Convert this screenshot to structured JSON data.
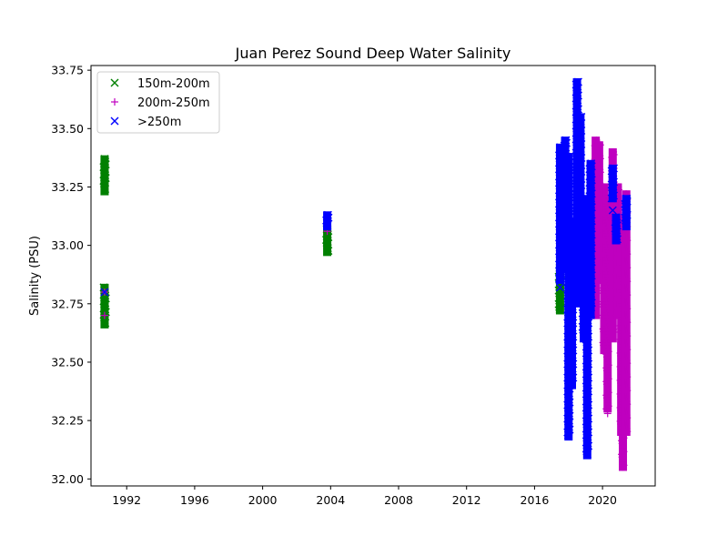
{
  "chart_data": {
    "type": "scatter",
    "title": "Juan Perez Sound Deep Water Salinity",
    "xlabel": "",
    "ylabel": "Salinity (PSU)",
    "xlim": [
      1989.9,
      2023.1
    ],
    "ylim": [
      31.97,
      33.77
    ],
    "xticks": [
      1992,
      1996,
      2000,
      2004,
      2008,
      2012,
      2016,
      2020
    ],
    "yticks": [
      "32.00",
      "32.25",
      "32.50",
      "32.75",
      "33.00",
      "33.25",
      "33.50",
      "33.75"
    ],
    "legend": {
      "placement": "top-left"
    },
    "series": [
      {
        "name": "150m-200m",
        "marker": "x",
        "color": "#008000",
        "clusters": [
          {
            "x": 1990.7,
            "ymin": 33.23,
            "ymax": 33.37
          },
          {
            "x": 1990.7,
            "ymin": 32.66,
            "ymax": 32.82
          },
          {
            "x": 2003.8,
            "ymin": 32.97,
            "ymax": 33.07
          },
          {
            "x": 2017.5,
            "ymin": 32.72,
            "ymax": 32.9
          }
        ],
        "points": [
          {
            "x": 1990.7,
            "y": 33.33
          },
          {
            "x": 1990.7,
            "y": 33.27
          },
          {
            "x": 1990.7,
            "y": 32.77
          },
          {
            "x": 1990.7,
            "y": 32.7
          },
          {
            "x": 2003.8,
            "y": 33.0
          },
          {
            "x": 2017.5,
            "y": 32.85
          }
        ]
      },
      {
        "name": "200m-250m",
        "marker": "+",
        "color": "#bf00bf",
        "clusters": [
          {
            "x": 2019.6,
            "ymin": 32.7,
            "ymax": 33.45
          },
          {
            "x": 2019.8,
            "ymin": 32.85,
            "ymax": 33.43
          },
          {
            "x": 2020.1,
            "ymin": 32.55,
            "ymax": 33.25
          },
          {
            "x": 2020.3,
            "ymin": 32.3,
            "ymax": 33.2
          },
          {
            "x": 2020.6,
            "ymin": 32.6,
            "ymax": 33.4
          },
          {
            "x": 2020.9,
            "ymin": 32.7,
            "ymax": 33.25
          },
          {
            "x": 2021.1,
            "ymin": 32.2,
            "ymax": 33.1
          },
          {
            "x": 2021.2,
            "ymin": 32.05,
            "ymax": 32.9
          },
          {
            "x": 2021.4,
            "ymin": 32.2,
            "ymax": 33.22
          }
        ],
        "points": [
          {
            "x": 1990.7,
            "y": 32.7
          },
          {
            "x": 1990.7,
            "y": 32.8
          },
          {
            "x": 2020.3,
            "y": 32.28
          },
          {
            "x": 2021.2,
            "y": 32.05
          },
          {
            "x": 2017.5,
            "y": 32.89
          },
          {
            "x": 2003.8,
            "y": 33.06
          }
        ]
      },
      {
        "name": ">250m",
        "marker": "x",
        "color": "#0000ff",
        "clusters": [
          {
            "x": 2003.8,
            "ymin": 33.08,
            "ymax": 33.13
          },
          {
            "x": 2017.5,
            "ymin": 32.85,
            "ymax": 33.42
          },
          {
            "x": 2017.8,
            "ymin": 32.9,
            "ymax": 33.45
          },
          {
            "x": 2018.0,
            "ymin": 32.18,
            "ymax": 33.38
          },
          {
            "x": 2018.2,
            "ymin": 32.4,
            "ymax": 33.1
          },
          {
            "x": 2018.5,
            "ymin": 32.75,
            "ymax": 33.7
          },
          {
            "x": 2018.7,
            "ymin": 32.9,
            "ymax": 33.55
          },
          {
            "x": 2018.9,
            "ymin": 32.6,
            "ymax": 33.2
          },
          {
            "x": 2019.1,
            "ymin": 32.1,
            "ymax": 33.1
          },
          {
            "x": 2019.3,
            "ymin": 32.7,
            "ymax": 33.35
          },
          {
            "x": 2020.6,
            "ymin": 33.2,
            "ymax": 33.33
          },
          {
            "x": 2020.8,
            "ymin": 33.02,
            "ymax": 33.12
          },
          {
            "x": 2021.4,
            "ymin": 33.08,
            "ymax": 33.2
          }
        ],
        "points": [
          {
            "x": 1990.7,
            "y": 32.8
          },
          {
            "x": 2017.5,
            "y": 32.82
          },
          {
            "x": 2020.6,
            "y": 33.15
          },
          {
            "x": 2020.6,
            "y": 33.28
          },
          {
            "x": 2003.8,
            "y": 33.11
          }
        ]
      }
    ]
  }
}
